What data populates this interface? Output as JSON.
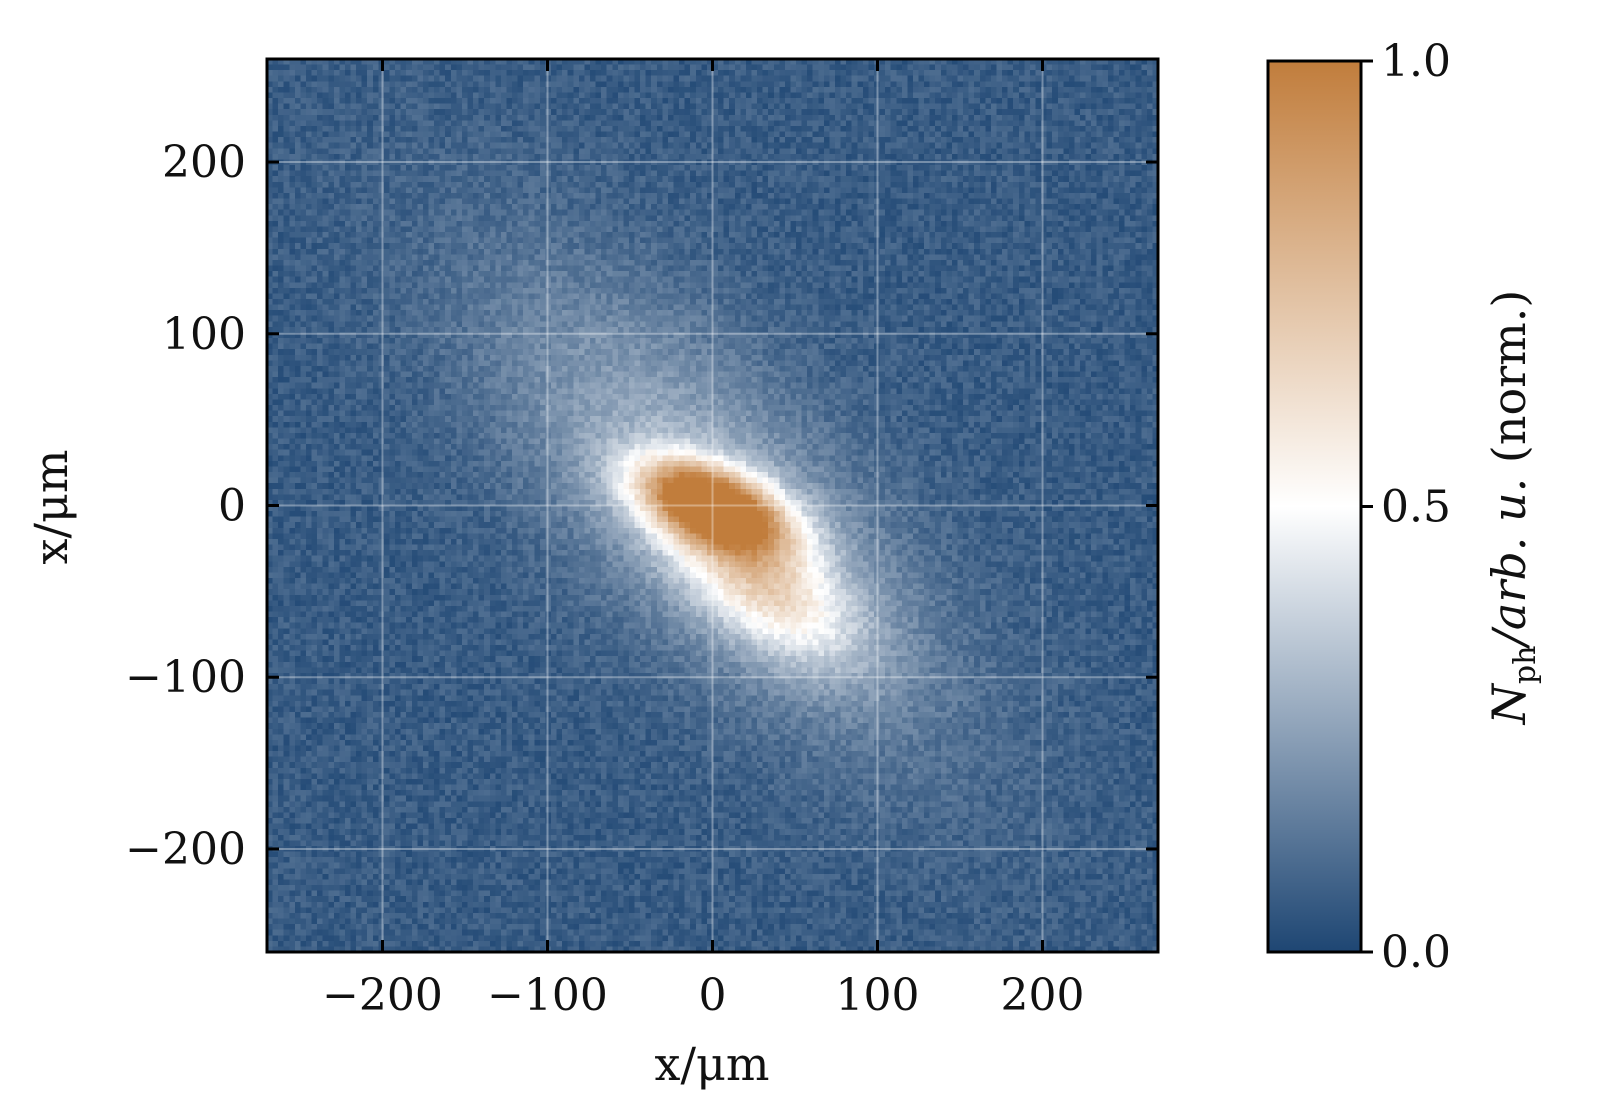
{
  "chart_data": {
    "type": "heatmap",
    "xlabel": "x/μm",
    "ylabel": "x/μm",
    "xlim": [
      -270,
      270
    ],
    "ylim": [
      -260,
      260
    ],
    "x_ticks": [
      -200,
      -100,
      0,
      100,
      200
    ],
    "y_ticks": [
      -200,
      -100,
      0,
      100,
      200
    ],
    "x_tick_labels": [
      "−200",
      "−100",
      "0",
      "100",
      "200"
    ],
    "y_tick_labels": [
      "−200",
      "−100",
      "0",
      "100",
      "200"
    ],
    "grid": true,
    "colormap": {
      "stops": [
        {
          "value": 0.0,
          "color": "#1e4673"
        },
        {
          "value": 0.5,
          "color": "#ffffff"
        },
        {
          "value": 1.0,
          "color": "#c17d3c"
        }
      ]
    },
    "colorbar": {
      "range": [
        0.0,
        1.0
      ],
      "ticks": [
        0.0,
        0.5,
        1.0
      ],
      "tick_labels": [
        "0.0",
        "0.5",
        "1.0"
      ],
      "label": {
        "symbol": "N",
        "subscript": "ph",
        "unit": "/arb. u.",
        "suffix": " (norm.)"
      }
    },
    "features": {
      "background_level": 0.06,
      "peak": {
        "x": 0,
        "y": 0,
        "value": 1.0,
        "sigma_major": 32,
        "sigma_minor": 15,
        "tilt_deg": -20
      },
      "lobe": {
        "x": 30,
        "y": -45,
        "value": 0.42,
        "sigma_major": 45,
        "sigma_minor": 22,
        "tilt_deg": -35
      },
      "halo": {
        "x": 0,
        "y": 0,
        "value": 0.24,
        "sigma_major": 120,
        "sigma_minor": 50,
        "tilt_deg": -45
      },
      "bins": 160
    }
  }
}
